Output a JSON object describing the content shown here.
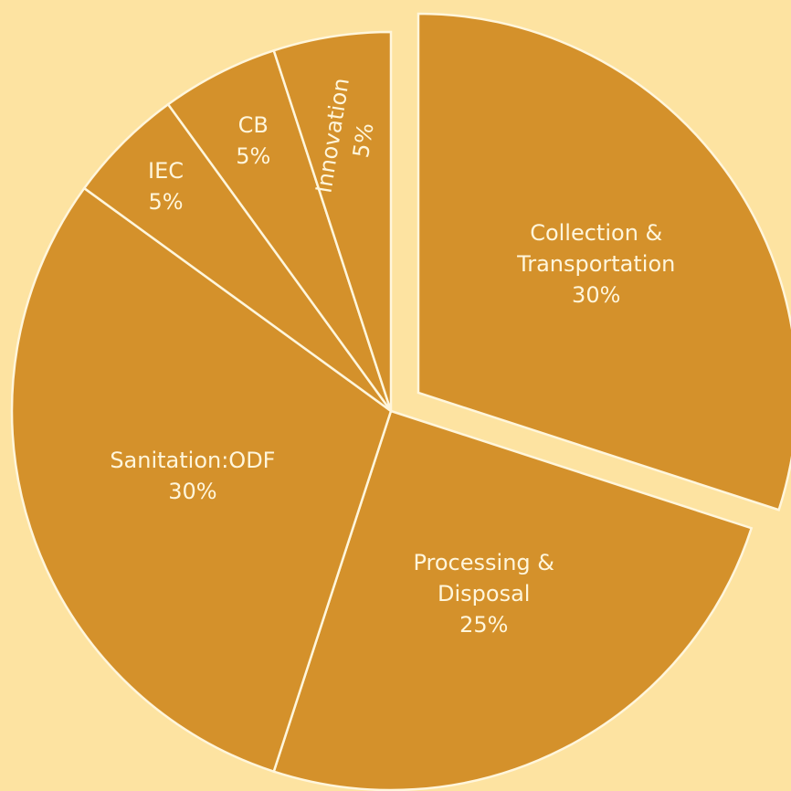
{
  "chart_data": {
    "type": "pie",
    "categories": [
      "Collection & Transportation",
      "Processing & Disposal",
      "Sanitation:ODF",
      "IEC",
      "CB",
      "Innovation"
    ],
    "values": [
      30,
      25,
      30,
      5,
      5,
      5
    ],
    "value_labels": [
      "30%",
      "25%",
      "30%",
      "5%",
      "5%",
      "5%"
    ],
    "color": "#d4912b"
  }
}
